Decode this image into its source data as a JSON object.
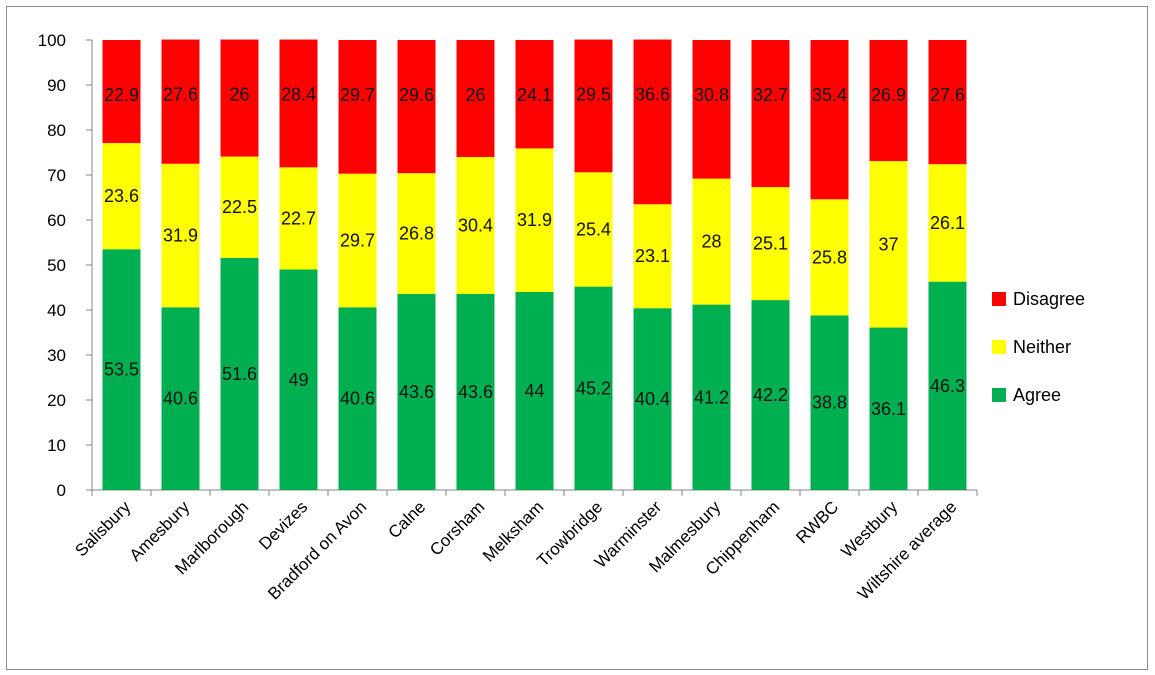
{
  "chart_data": {
    "type": "bar",
    "stacked": true,
    "categories": [
      "Salisbury",
      "Amesbury",
      "Marlborough",
      "Devizes",
      "Bradford on Avon",
      "Calne",
      "Corsham",
      "Melksham",
      "Trowbridge",
      "Warminster",
      "Malmesbury",
      "Chippenham",
      "RWBC",
      "Westbury",
      "Wiltshire average"
    ],
    "series": [
      {
        "name": "Agree",
        "color": "#00b050",
        "values": [
          53.5,
          40.6,
          51.6,
          49,
          40.6,
          43.6,
          43.6,
          44,
          45.2,
          40.4,
          41.2,
          42.2,
          38.8,
          36.1,
          46.3
        ]
      },
      {
        "name": "Neither",
        "color": "#ffff00",
        "values": [
          23.6,
          31.9,
          22.5,
          22.7,
          29.7,
          26.8,
          30.4,
          31.9,
          25.4,
          23.1,
          28,
          25.1,
          25.8,
          37,
          26.1
        ]
      },
      {
        "name": "Disagree",
        "color": "#ff0000",
        "values": [
          22.9,
          27.6,
          26,
          28.4,
          29.7,
          29.6,
          26,
          24.1,
          29.5,
          36.6,
          30.8,
          32.7,
          35.4,
          26.9,
          27.6
        ]
      }
    ],
    "ylim": [
      0,
      100
    ],
    "yticks": [
      "0",
      "10",
      "20",
      "30",
      "40",
      "50",
      "60",
      "70",
      "80",
      "90",
      "100"
    ],
    "title": "",
    "xlabel": "",
    "ylabel": "",
    "grid": false,
    "legend_position": "right"
  }
}
